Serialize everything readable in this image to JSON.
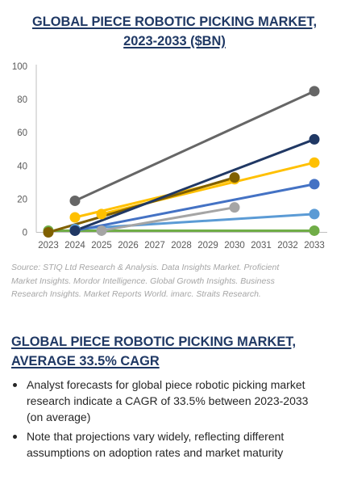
{
  "chart_data": {
    "type": "line",
    "title": [
      "GLOBAL PIECE ROBOTIC PICKING MARKET,",
      "2023-2033 ($BN)"
    ],
    "xlabel": "",
    "ylabel": "",
    "xlim": [
      2023,
      2033
    ],
    "ylim": [
      0,
      100
    ],
    "x_ticks": [
      2023,
      2024,
      2025,
      2026,
      2027,
      2028,
      2029,
      2030,
      2031,
      2032,
      2033
    ],
    "y_ticks": [
      0,
      20,
      40,
      60,
      80,
      100
    ],
    "grid": false,
    "legend": "none",
    "series": [
      {
        "color": "#70ad47",
        "x": [
          2023,
          2033
        ],
        "y": [
          1,
          1
        ]
      },
      {
        "color": "#5b9bd5",
        "x": [
          2024,
          2033
        ],
        "y": [
          2,
          11
        ]
      },
      {
        "color": "#4472c4",
        "x": [
          2024,
          2033
        ],
        "y": [
          1,
          29
        ]
      },
      {
        "color": "#ffc000",
        "x": [
          2024,
          2030
        ],
        "y": [
          9,
          32
        ]
      },
      {
        "color": "#ffc000",
        "x": [
          2025,
          2033
        ],
        "y": [
          11,
          42
        ]
      },
      {
        "color": "#806000",
        "x": [
          2023,
          2030
        ],
        "y": [
          0,
          33
        ]
      },
      {
        "color": "#a5a5a5",
        "x": [
          2025,
          2030
        ],
        "y": [
          1,
          15
        ]
      },
      {
        "color": "#203864",
        "x": [
          2024,
          2033
        ],
        "y": [
          1,
          56
        ]
      },
      {
        "color": "#666666",
        "x": [
          2024,
          2033
        ],
        "y": [
          19,
          85
        ]
      }
    ]
  },
  "source": {
    "lines": [
      "Source: STIQ Ltd Research & Analysis. Data Insights Market. Proficient",
      "Market Insights. Mordor Intelligence. Global Growth Insights. Business",
      "Research Insights. Market Reports World. imarc. Straits Research."
    ]
  },
  "section": {
    "heading": [
      "GLOBAL PIECE ROBOTIC PICKING MARKET,",
      "AVERAGE 33.5% CAGR"
    ]
  },
  "bullets": [
    {
      "lines": [
        "Analyst forecasts for global piece robotic picking market",
        "research indicate a CAGR of 33.5% between 2023-2033",
        "(on average)"
      ]
    },
    {
      "lines": [
        "Note that projections vary widely, reflecting different",
        "assumptions on adoption rates and market maturity"
      ]
    }
  ],
  "colors": {
    "heading": "#1f3864",
    "source_text": "#a6a6a6",
    "body_text": "#262626",
    "axis": "#bfbfbf"
  }
}
